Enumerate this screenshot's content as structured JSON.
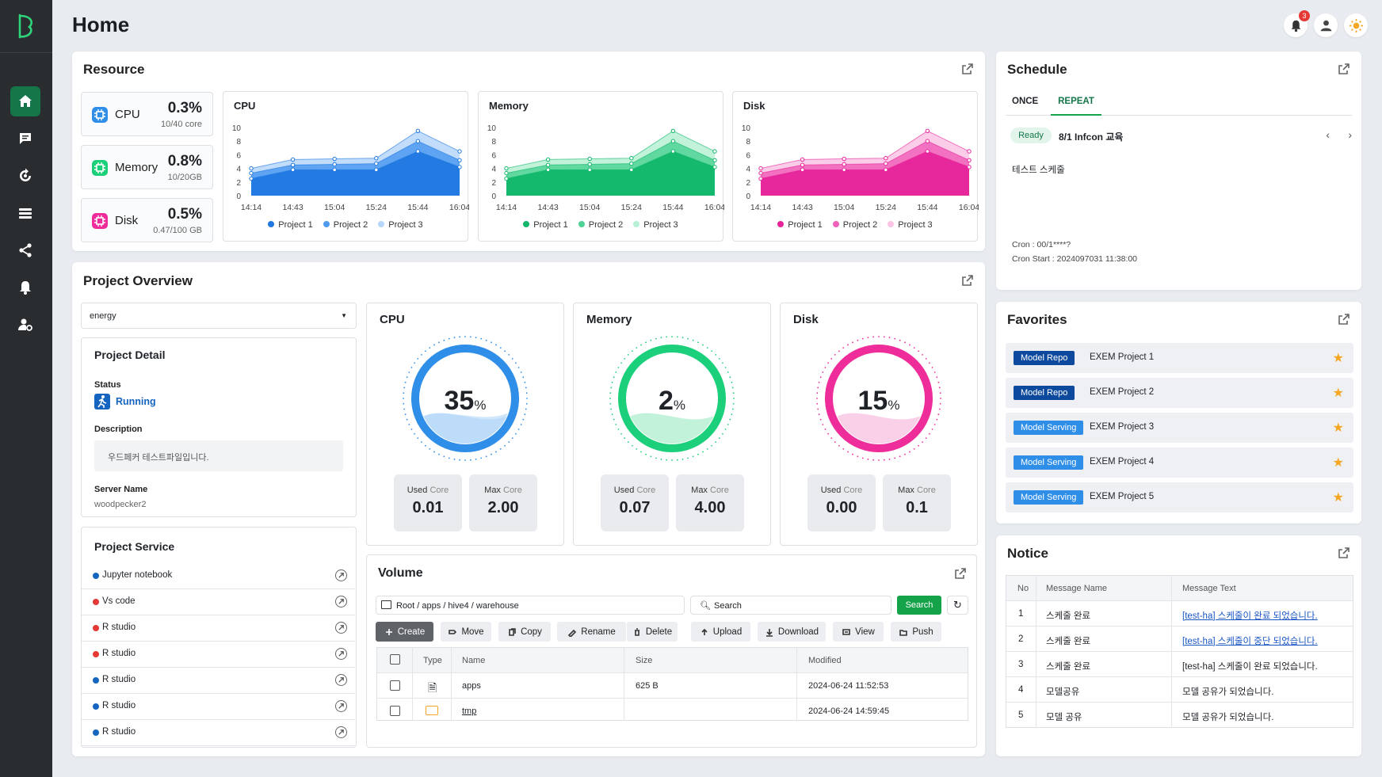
{
  "page": {
    "title": "Home",
    "notifications": "3"
  },
  "sidebar": {
    "items": [
      "home-icon",
      "chat-icon",
      "sync-icon",
      "list-icon",
      "share-icon",
      "bell-icon",
      "user-settings-icon"
    ]
  },
  "resource": {
    "title": "Resource",
    "cpu": {
      "label": "CPU",
      "pct": "0.3%",
      "sub": "10/40 core"
    },
    "memory": {
      "label": "Memory",
      "pct": "0.8%",
      "sub": "10/20GB"
    },
    "disk": {
      "label": "Disk",
      "pct": "0.5%",
      "sub": "0.47/100 GB"
    }
  },
  "chart_data": [
    {
      "type": "area",
      "title": "CPU",
      "x": [
        "14:14",
        "14:43",
        "15:04",
        "15:24",
        "15:44",
        "16:04"
      ],
      "ylim": [
        0,
        10
      ],
      "yticks": [
        0,
        2,
        4,
        6,
        8,
        10
      ],
      "series": [
        {
          "name": "Project 1",
          "values": [
            2.5,
            3.8,
            3.8,
            3.8,
            6.5,
            4.2
          ]
        },
        {
          "name": "Project 2",
          "values": [
            3.3,
            4.5,
            4.6,
            4.7,
            8,
            5.2
          ]
        },
        {
          "name": "Project 3",
          "values": [
            4,
            5.3,
            5.4,
            5.5,
            9.5,
            6.5
          ]
        }
      ]
    },
    {
      "type": "area",
      "title": "Memory",
      "x": [
        "14:14",
        "14:43",
        "15:04",
        "15:24",
        "15:44",
        "16:04"
      ],
      "ylim": [
        0,
        10
      ],
      "yticks": [
        0,
        2,
        4,
        6,
        8,
        10
      ],
      "series": [
        {
          "name": "Project 1",
          "values": [
            2.5,
            3.8,
            3.8,
            3.8,
            6.5,
            4.2
          ]
        },
        {
          "name": "Project 2",
          "values": [
            3.3,
            4.5,
            4.6,
            4.7,
            8,
            5.2
          ]
        },
        {
          "name": "Project 3",
          "values": [
            4,
            5.3,
            5.4,
            5.5,
            9.5,
            6.5
          ]
        }
      ]
    },
    {
      "type": "area",
      "title": "Disk",
      "x": [
        "14:14",
        "14:43",
        "15:04",
        "15:24",
        "15:44",
        "16:04"
      ],
      "ylim": [
        0,
        10
      ],
      "yticks": [
        0,
        2,
        4,
        6,
        8,
        10
      ],
      "series": [
        {
          "name": "Project 1",
          "values": [
            2.5,
            3.8,
            3.8,
            3.8,
            6.5,
            4.2
          ]
        },
        {
          "name": "Project 2",
          "values": [
            3.3,
            4.5,
            4.6,
            4.7,
            8,
            5.2
          ]
        },
        {
          "name": "Project 3",
          "values": [
            4,
            5.3,
            5.4,
            5.5,
            9.5,
            6.5
          ]
        }
      ]
    }
  ],
  "chart_colors": [
    [
      "#1f78e0",
      "#4d9af0",
      "#b7d6fb"
    ],
    [
      "#10b76a",
      "#4fd394",
      "#b8f0d5"
    ],
    [
      "#e6239a",
      "#f060b8",
      "#fbc4e4"
    ]
  ],
  "overview": {
    "title": "Project Overview",
    "select": "energy",
    "detail": {
      "title": "Project Detail",
      "status_label": "Status",
      "status": "Running",
      "desc_label": "Description",
      "desc": "우드페커 테스트파일입니다.",
      "server_label": "Server Name",
      "server": "woodpecker2"
    },
    "service": {
      "title": "Project Service",
      "items": [
        {
          "name": "Jupyter notebook",
          "color": "#1565c0"
        },
        {
          "name": "Vs code",
          "color": "#e53935"
        },
        {
          "name": "R studio",
          "color": "#e53935"
        },
        {
          "name": "R studio",
          "color": "#e53935"
        },
        {
          "name": "R studio",
          "color": "#1565c0"
        },
        {
          "name": "R studio",
          "color": "#1565c0"
        },
        {
          "name": "R studio",
          "color": "#1565c0"
        }
      ]
    },
    "gauges": [
      {
        "title": "CPU",
        "value": "35",
        "unit": "%",
        "used_label": "Used",
        "max_label": "Max",
        "core": "Core",
        "used": "0.01",
        "max": "2.00",
        "color": "#2f8ee8",
        "light": "#bcdcfa"
      },
      {
        "title": "Memory",
        "value": "2",
        "unit": "%",
        "used_label": "Used",
        "max_label": "Max",
        "core": "Core",
        "used": "0.07",
        "max": "4.00",
        "color": "#1ccf7a",
        "light": "#c2f2da"
      },
      {
        "title": "Disk",
        "value": "15",
        "unit": "%",
        "used_label": "Used",
        "max_label": "Max",
        "core": "Core",
        "used": "0.00",
        "max": "0.1",
        "color": "#ee2d9a",
        "light": "#fad0e8"
      }
    ]
  },
  "volume": {
    "title": "Volume",
    "path": "Root / apps / hive4 / warehouse",
    "search_placeholder": "Search",
    "search_btn": "Search",
    "buttons": [
      "Create",
      "Move",
      "Copy",
      "Rename",
      "Delete",
      "Upload",
      "Download",
      "View",
      "Push"
    ],
    "headers": [
      "Type",
      "Name",
      "Size",
      "Modified"
    ],
    "rows": [
      {
        "name": "apps",
        "size": "625 B",
        "modified": "2024-06-24 11:52:53"
      },
      {
        "name": "tmp",
        "size": "",
        "modified": "2024-06-24 14:59:45"
      }
    ]
  },
  "schedule": {
    "title": "Schedule",
    "tabs": [
      "ONCE",
      "REPEAT"
    ],
    "status": "Ready",
    "name": "8/1 Infcon 교육",
    "body": "테스트 스케줄",
    "cron": "Cron : 00/1****?",
    "cron_start": "Cron Start : 2024097031 11:38:00"
  },
  "favorites": {
    "title": "Favorites",
    "items": [
      {
        "tag": "Model Repo",
        "name": "EXEM Project 1",
        "color": "#0d4a9e"
      },
      {
        "tag": "Model Repo",
        "name": "EXEM Project 2",
        "color": "#0d4a9e"
      },
      {
        "tag": "Model Serving",
        "name": "EXEM Project 3",
        "color": "#2f8ee8"
      },
      {
        "tag": "Model Serving",
        "name": "EXEM Project 4",
        "color": "#2f8ee8"
      },
      {
        "tag": "Model Serving",
        "name": "EXEM Project 5",
        "color": "#2f8ee8"
      }
    ]
  },
  "notice": {
    "title": "Notice",
    "headers": [
      "No",
      "Message Name",
      "Message Text"
    ],
    "rows": [
      {
        "no": "1",
        "name": "스케줄 완료",
        "text": "[test-ha] 스케줄이 완료 되었습니다.",
        "link": true
      },
      {
        "no": "2",
        "name": "스케줄 완료",
        "text": "[test-ha] 스케줄이 중단 되었습니다.",
        "link": true
      },
      {
        "no": "3",
        "name": "스케줄 완료",
        "text": "[test-ha] 스케줄이 완료 되었습니다.",
        "link": false
      },
      {
        "no": "4",
        "name": "모델공유",
        "text": "모델 공유가 되었습니다.",
        "link": false
      },
      {
        "no": "5",
        "name": "모델 공유",
        "text": "모델 공유가 되었습니다.",
        "link": false
      }
    ]
  }
}
